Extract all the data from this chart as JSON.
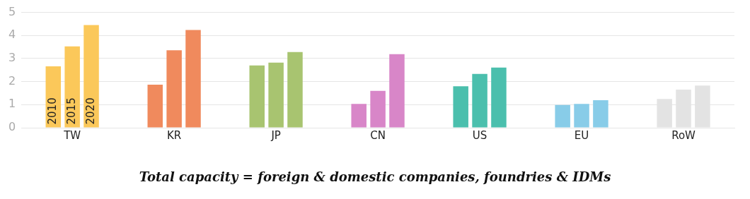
{
  "chart_data": {
    "type": "bar",
    "title": "Total capacity = foreign & domestic companies, foundries & IDMs",
    "categories": [
      "TW",
      "KR",
      "JP",
      "CN",
      "US",
      "EU",
      "RoW"
    ],
    "series": [
      {
        "name": "2010",
        "colors": [
          "#fbc85a",
          "#f08a5d",
          "#a8c470",
          "#d886c8",
          "#4bbfad",
          "#88cce8",
          "#e3e3e3"
        ],
        "values": [
          2.66,
          1.87,
          2.7,
          1.03,
          1.8,
          0.99,
          1.25
        ]
      },
      {
        "name": "2015",
        "colors": [
          "#fbc85a",
          "#f08a5d",
          "#a8c470",
          "#d886c8",
          "#4bbfad",
          "#88cce8",
          "#e3e3e3"
        ],
        "values": [
          3.53,
          3.36,
          2.82,
          1.6,
          2.33,
          1.03,
          1.65
        ]
      },
      {
        "name": "2020",
        "colors": [
          "#fbc85a",
          "#f08a5d",
          "#a8c470",
          "#d886c8",
          "#4bbfad",
          "#88cce8",
          "#e3e3e3"
        ],
        "values": [
          4.45,
          4.24,
          3.28,
          3.19,
          2.61,
          1.19,
          1.83
        ]
      }
    ],
    "ylim": [
      0,
      5
    ],
    "yticks": [
      0,
      1,
      2,
      3,
      4,
      5
    ],
    "grid": "y",
    "legend": false
  }
}
